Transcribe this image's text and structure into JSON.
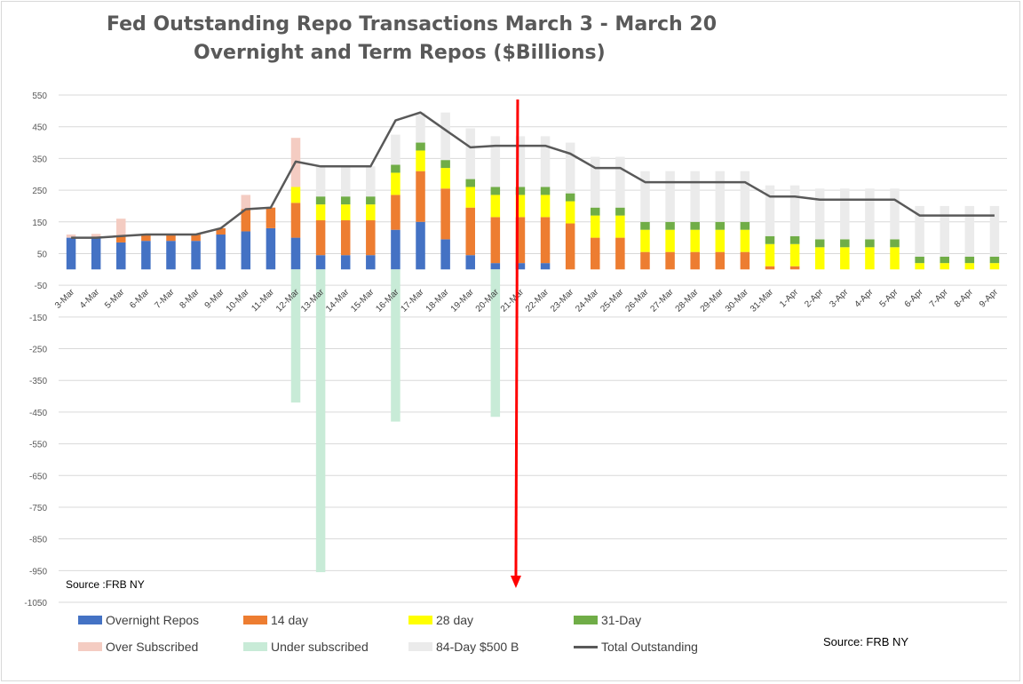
{
  "title": {
    "line1": "Fed Outstanding Repo Transactions March 3 - March 20",
    "line2": "Overnight and Term  Repos ($Billions)"
  },
  "source_inside": "Source :FRB NY",
  "source_outside": "Source: FRB NY",
  "colors": {
    "overnight": "#4472C4",
    "d14": "#ED7D31",
    "d28": "#FFFF00",
    "d31": "#70AD47",
    "over": "#F4CCC2",
    "under": "#C8EBD7",
    "d84": "#EBEBEB",
    "total": "#595959",
    "arrow": "#FF0000",
    "grid": "#D9D9D9"
  },
  "chart_data": {
    "type": "bar",
    "stacked": true,
    "title": "Fed Outstanding Repo Transactions March 3 - March 20 Overnight and Term  Repos ($Billions)",
    "ylim": [
      -1050,
      550
    ],
    "yticks": [
      550,
      450,
      350,
      250,
      150,
      50,
      -50,
      -150,
      -250,
      -350,
      -450,
      -550,
      -650,
      -750,
      -850,
      -950,
      -1050
    ],
    "grid": true,
    "legend_position": "bottom",
    "categories": [
      "3-Mar",
      "4-Mar",
      "5-Mar",
      "6-Mar",
      "7-Mar",
      "8-Mar",
      "9-Mar",
      "10-Mar",
      "11-Mar",
      "12-Mar",
      "13-Mar",
      "14-Mar",
      "15-Mar",
      "16-Mar",
      "17-Mar",
      "18-Mar",
      "19-Mar",
      "20-Mar",
      "21-Mar",
      "22-Mar",
      "23-Mar",
      "24-Mar",
      "25-Mar",
      "26-Mar",
      "27-Mar",
      "28-Mar",
      "29-Mar",
      "30-Mar",
      "31-Mar",
      "1-Apr",
      "2-Apr",
      "3-Apr",
      "4-Apr",
      "5-Apr",
      "6-Apr",
      "7-Apr",
      "8-Apr",
      "9-Apr"
    ],
    "series": [
      {
        "name": "Overnight Repos",
        "key": "overnight",
        "values": [
          100,
          100,
          85,
          90,
          90,
          90,
          110,
          120,
          130,
          100,
          45,
          45,
          45,
          125,
          150,
          95,
          45,
          20,
          20,
          20,
          0,
          0,
          0,
          0,
          0,
          0,
          0,
          0,
          0,
          0,
          0,
          0,
          0,
          0,
          0,
          0,
          0,
          0
        ]
      },
      {
        "name": "14 day",
        "key": "d14",
        "values": [
          0,
          0,
          20,
          20,
          20,
          20,
          20,
          70,
          65,
          110,
          110,
          110,
          110,
          110,
          160,
          160,
          150,
          145,
          145,
          145,
          145,
          100,
          100,
          55,
          55,
          55,
          55,
          55,
          10,
          10,
          0,
          0,
          0,
          0,
          0,
          0,
          0,
          0
        ]
      },
      {
        "name": "28 day",
        "key": "d28",
        "values": [
          0,
          0,
          0,
          0,
          0,
          0,
          0,
          0,
          0,
          50,
          50,
          50,
          50,
          70,
          65,
          65,
          65,
          70,
          70,
          70,
          70,
          70,
          70,
          70,
          70,
          70,
          70,
          70,
          70,
          70,
          70,
          70,
          70,
          70,
          20,
          20,
          20,
          20
        ]
      },
      {
        "name": "31-Day",
        "key": "d31",
        "values": [
          0,
          0,
          0,
          0,
          0,
          0,
          0,
          0,
          0,
          0,
          25,
          25,
          25,
          25,
          25,
          25,
          25,
          25,
          25,
          25,
          25,
          25,
          25,
          25,
          25,
          25,
          25,
          25,
          25,
          25,
          25,
          25,
          25,
          25,
          20,
          20,
          20,
          20
        ]
      },
      {
        "name": "Over Subscribed",
        "key": "over",
        "values": [
          10,
          12,
          55,
          0,
          0,
          0,
          0,
          45,
          0,
          155,
          0,
          0,
          0,
          0,
          0,
          0,
          0,
          0,
          0,
          0,
          0,
          0,
          0,
          0,
          0,
          0,
          0,
          0,
          0,
          0,
          0,
          0,
          0,
          0,
          0,
          0,
          0,
          0
        ]
      },
      {
        "name": "Under subscribed",
        "key": "under",
        "values": [
          0,
          0,
          0,
          0,
          0,
          0,
          0,
          0,
          0,
          -420,
          -955,
          0,
          0,
          -480,
          0,
          0,
          0,
          -465,
          0,
          0,
          0,
          0,
          0,
          0,
          0,
          0,
          0,
          0,
          0,
          0,
          0,
          0,
          0,
          0,
          0,
          0,
          0,
          0
        ]
      },
      {
        "name": "84-Day $500 B",
        "key": "d84",
        "values": [
          0,
          0,
          0,
          0,
          0,
          0,
          0,
          0,
          0,
          0,
          95,
          95,
          95,
          95,
          95,
          150,
          160,
          160,
          160,
          160,
          160,
          160,
          160,
          160,
          160,
          160,
          160,
          160,
          160,
          160,
          160,
          160,
          160,
          160,
          160,
          160,
          160,
          160
        ]
      },
      {
        "name": "Total Outstanding",
        "key": "total",
        "type": "line",
        "values": [
          100,
          100,
          105,
          110,
          110,
          110,
          130,
          190,
          195,
          340,
          325,
          325,
          325,
          470,
          495,
          440,
          385,
          390,
          390,
          390,
          365,
          320,
          320,
          275,
          275,
          275,
          275,
          275,
          230,
          230,
          220,
          220,
          220,
          220,
          170,
          170,
          170,
          170
        ]
      }
    ],
    "annotations": [
      {
        "type": "arrow",
        "x": "21-Mar",
        "from": 550,
        "to": -1000,
        "color": "#FF0000"
      }
    ]
  },
  "legend": {
    "row1": [
      {
        "label": "Overnight Repos",
        "key": "overnight"
      },
      {
        "label": "14 day",
        "key": "d14"
      },
      {
        "label": "28 day",
        "key": "d28"
      },
      {
        "label": "31-Day",
        "key": "d31"
      }
    ],
    "row2": [
      {
        "label": "Over Subscribed",
        "key": "over"
      },
      {
        "label": "Under subscribed",
        "key": "under"
      },
      {
        "label": "84-Day $500 B",
        "key": "d84"
      },
      {
        "label": "Total Outstanding",
        "key": "total"
      }
    ]
  }
}
